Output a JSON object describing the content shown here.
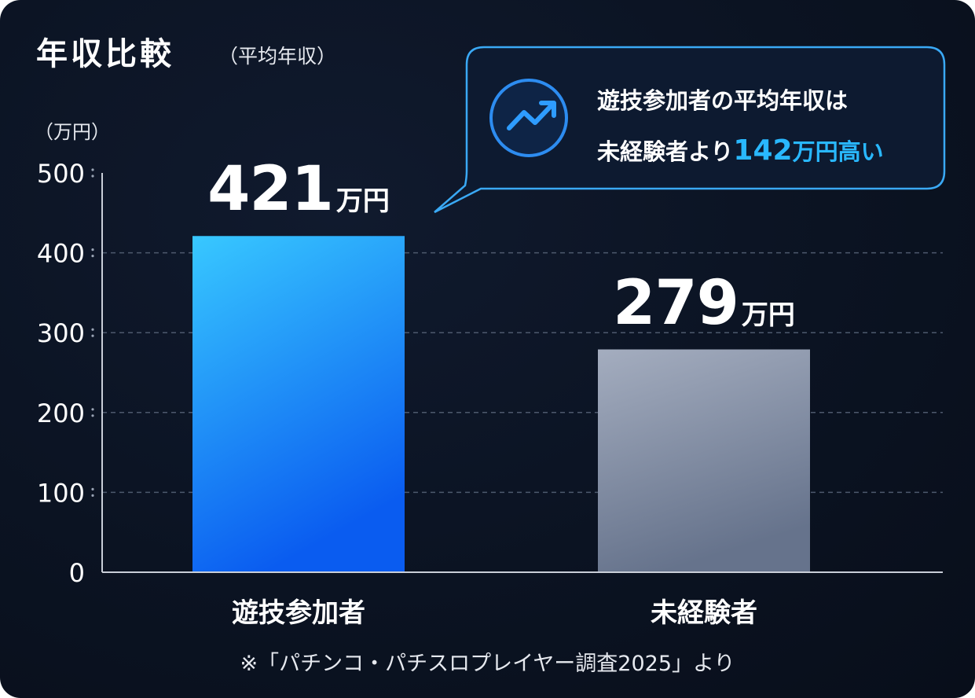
{
  "header": {
    "title": "年収比較",
    "subtitle": "（平均年収）",
    "unit_label": "（万円）"
  },
  "callout": {
    "line1": "遊技参加者の平均年収は",
    "line2_prefix": "未経験者より",
    "line2_number": "142",
    "line2_suffix": "万円高い",
    "icon": "trending-up-icon"
  },
  "source_note": "※「パチンコ・パチスロプレイヤー調査2025」より",
  "colors": {
    "background": "#0b1322",
    "accent": "#29b8ff",
    "bar_participant_top": "#38c8ff",
    "bar_participant_bottom": "#0a5cf0",
    "bar_inexperienced_top": "#a4adbf",
    "bar_inexperienced_bottom": "#66738c"
  },
  "chart_data": {
    "type": "bar",
    "categories": [
      "遊技参加者",
      "未経験者"
    ],
    "values": [
      421,
      279
    ],
    "value_unit": "万円",
    "value_labels": [
      "421",
      "279"
    ],
    "ylabel": "（万円）",
    "yticks": [
      "0",
      "100",
      "200",
      "300",
      "400",
      "500"
    ],
    "ylim": [
      0,
      500
    ],
    "grid": true
  }
}
